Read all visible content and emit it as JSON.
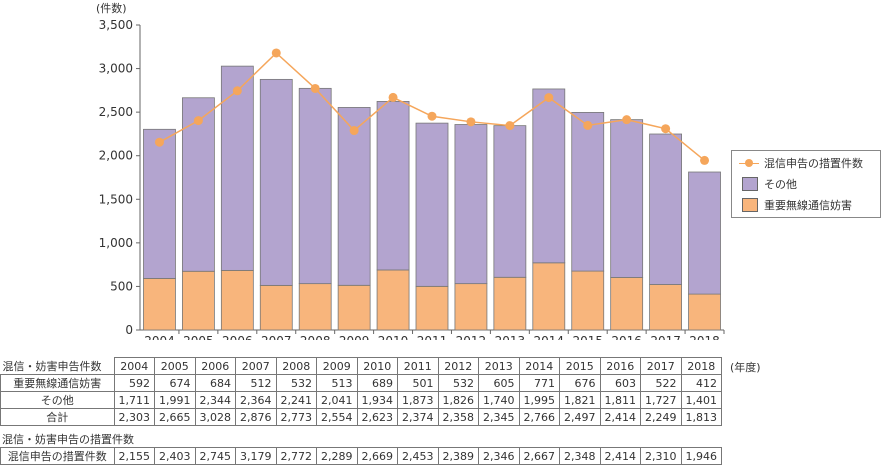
{
  "unit_label": "(件数)",
  "year_unit": "(年度)",
  "chart_data": {
    "type": "bar",
    "stacked": true,
    "categories": [
      "2004",
      "2005",
      "2006",
      "2007",
      "2008",
      "2009",
      "2010",
      "2011",
      "2012",
      "2013",
      "2014",
      "2015",
      "2016",
      "2017",
      "2018"
    ],
    "ylim": [
      0,
      3500
    ],
    "yticks": [
      0,
      500,
      1000,
      1500,
      2000,
      2500,
      3000,
      3500
    ],
    "ytick_labels": [
      "0",
      "500",
      "1,000",
      "1,500",
      "2,000",
      "2,500",
      "3,000",
      "3,500"
    ],
    "grid": false,
    "legend_position": "right",
    "series": [
      {
        "name": "重要無線通信妨害",
        "kind": "bar",
        "color": "#f8b57c",
        "values": [
          592,
          674,
          684,
          512,
          532,
          513,
          689,
          501,
          532,
          605,
          771,
          676,
          603,
          522,
          412
        ]
      },
      {
        "name": "その他",
        "kind": "bar",
        "color": "#b3a4cf",
        "values": [
          1711,
          1991,
          2344,
          2364,
          2241,
          2041,
          1934,
          1873,
          1826,
          1740,
          1995,
          1821,
          1811,
          1727,
          1401
        ]
      },
      {
        "name": "混信申告の措置件数",
        "kind": "line",
        "color": "#f5a65b",
        "values": [
          2155,
          2403,
          2745,
          3179,
          2772,
          2289,
          2669,
          2453,
          2389,
          2346,
          2667,
          2348,
          2414,
          2310,
          1946
        ]
      }
    ]
  },
  "legend": [
    {
      "label": "混信申告の措置件数",
      "type": "line",
      "color": "#f5a65b"
    },
    {
      "label": "その他",
      "type": "box",
      "color": "#b3a4cf"
    },
    {
      "label": "重要無線通信妨害",
      "type": "box",
      "color": "#f8b57c"
    }
  ],
  "table1": {
    "caption": "混信・妨害申告件数",
    "years": [
      "2004",
      "2005",
      "2006",
      "2007",
      "2008",
      "2009",
      "2010",
      "2011",
      "2012",
      "2013",
      "2014",
      "2015",
      "2016",
      "2017",
      "2018"
    ],
    "rows": [
      {
        "label": "重要無線通信妨害",
        "values": [
          "592",
          "674",
          "684",
          "512",
          "532",
          "513",
          "689",
          "501",
          "532",
          "605",
          "771",
          "676",
          "603",
          "522",
          "412"
        ]
      },
      {
        "label": "その他",
        "values": [
          "1,711",
          "1,991",
          "2,344",
          "2,364",
          "2,241",
          "2,041",
          "1,934",
          "1,873",
          "1,826",
          "1,740",
          "1,995",
          "1,821",
          "1,811",
          "1,727",
          "1,401"
        ]
      },
      {
        "label": "合計",
        "values": [
          "2,303",
          "2,665",
          "3,028",
          "2,876",
          "2,773",
          "2,554",
          "2,623",
          "2,374",
          "2,358",
          "2,345",
          "2,766",
          "2,497",
          "2,414",
          "2,249",
          "1,813"
        ]
      }
    ]
  },
  "table2": {
    "caption": "混信・妨害申告の措置件数",
    "rows": [
      {
        "label": "混信申告の措置件数",
        "values": [
          "2,155",
          "2,403",
          "2,745",
          "3,179",
          "2,772",
          "2,289",
          "2,669",
          "2,453",
          "2,389",
          "2,346",
          "2,667",
          "2,348",
          "2,414",
          "2,310",
          "1,946"
        ]
      }
    ]
  }
}
